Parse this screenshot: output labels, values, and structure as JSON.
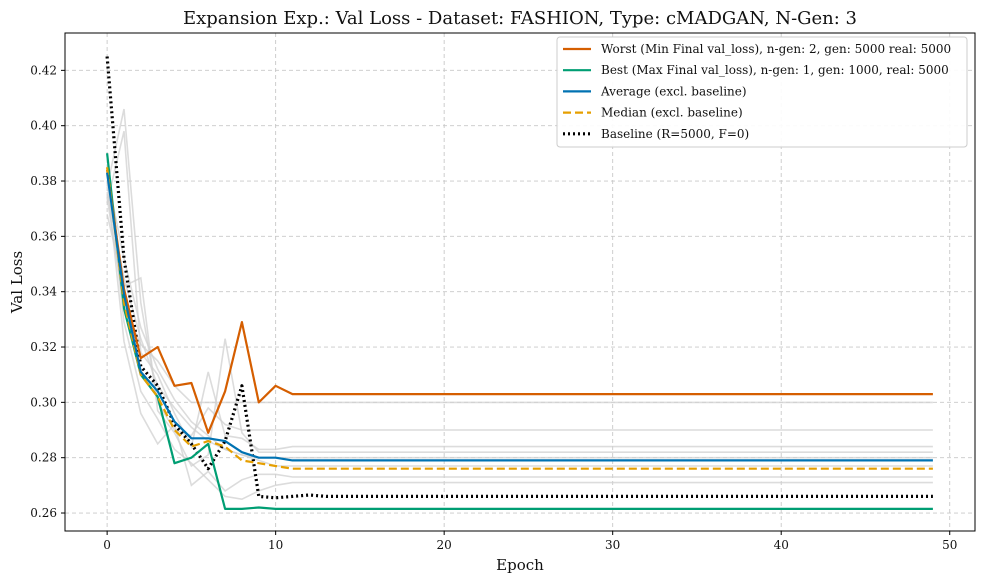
{
  "chart_data": {
    "type": "line",
    "title": "Expansion Exp.: Val Loss - Dataset: FASHION, Type: cMADGAN, N-Gen: 3",
    "xlabel": "Epoch",
    "ylabel": "Val Loss",
    "xlim": [
      -2.5,
      51.5
    ],
    "ylim": [
      0.2535,
      0.4335
    ],
    "xticks": [
      0,
      10,
      20,
      30,
      40,
      50
    ],
    "yticks": [
      0.26,
      0.28,
      0.3,
      0.32,
      0.34,
      0.36,
      0.38,
      0.4,
      0.42
    ],
    "grid": true,
    "legend_position": "top-right",
    "series": [
      {
        "name": "Worst (Min Final val_loss), n-gen: 2, gen: 5000 real: 5000",
        "color": "#d55e00",
        "style": "solid",
        "values": [
          0.384,
          0.341,
          0.316,
          0.32,
          0.306,
          0.307,
          0.289,
          0.304,
          0.329,
          0.3,
          0.306,
          0.303,
          0.303,
          0.303,
          0.303,
          0.303,
          0.303,
          0.303,
          0.303,
          0.303,
          0.303,
          0.303,
          0.303,
          0.303,
          0.303,
          0.303,
          0.303,
          0.303,
          0.303,
          0.303,
          0.303,
          0.303,
          0.303,
          0.303,
          0.303,
          0.303,
          0.303,
          0.303,
          0.303,
          0.303,
          0.303,
          0.303,
          0.303,
          0.303,
          0.303,
          0.303,
          0.303,
          0.303,
          0.303,
          0.303
        ]
      },
      {
        "name": "Best (Max Final val_loss), n-gen: 1, gen: 1000, real: 5000",
        "color": "#009e73",
        "style": "solid",
        "values": [
          0.39,
          0.334,
          0.31,
          0.302,
          0.278,
          0.28,
          0.285,
          0.2615,
          0.2615,
          0.262,
          0.2615,
          0.2615,
          0.2615,
          0.2615,
          0.2615,
          0.2615,
          0.2615,
          0.2615,
          0.2615,
          0.2615,
          0.2615,
          0.2615,
          0.2615,
          0.2615,
          0.2615,
          0.2615,
          0.2615,
          0.2615,
          0.2615,
          0.2615,
          0.2615,
          0.2615,
          0.2615,
          0.2615,
          0.2615,
          0.2615,
          0.2615,
          0.2615,
          0.2615,
          0.2615,
          0.2615,
          0.2615,
          0.2615,
          0.2615,
          0.2615,
          0.2615,
          0.2615,
          0.2615,
          0.2615,
          0.2615
        ]
      },
      {
        "name": "Average (excl. baseline)",
        "color": "#0072b2",
        "style": "solid",
        "values": [
          0.383,
          0.339,
          0.311,
          0.304,
          0.293,
          0.287,
          0.287,
          0.286,
          0.282,
          0.28,
          0.28,
          0.279,
          0.279,
          0.279,
          0.279,
          0.279,
          0.279,
          0.279,
          0.279,
          0.279,
          0.279,
          0.279,
          0.279,
          0.279,
          0.279,
          0.279,
          0.279,
          0.279,
          0.279,
          0.279,
          0.279,
          0.279,
          0.279,
          0.279,
          0.279,
          0.279,
          0.279,
          0.279,
          0.279,
          0.279,
          0.279,
          0.279,
          0.279,
          0.279,
          0.279,
          0.279,
          0.279,
          0.279,
          0.279,
          0.279
        ]
      },
      {
        "name": "Median (excl. baseline)",
        "color": "#e69f00",
        "style": "dashed",
        "values": [
          0.385,
          0.336,
          0.31,
          0.302,
          0.29,
          0.284,
          0.286,
          0.284,
          0.279,
          0.278,
          0.277,
          0.276,
          0.276,
          0.276,
          0.276,
          0.276,
          0.276,
          0.276,
          0.276,
          0.276,
          0.276,
          0.276,
          0.276,
          0.276,
          0.276,
          0.276,
          0.276,
          0.276,
          0.276,
          0.276,
          0.276,
          0.276,
          0.276,
          0.276,
          0.276,
          0.276,
          0.276,
          0.276,
          0.276,
          0.276,
          0.276,
          0.276,
          0.276,
          0.276,
          0.276,
          0.276,
          0.276,
          0.276,
          0.276,
          0.276
        ]
      },
      {
        "name": "Baseline (R=5000, F=0)",
        "color": "#000000",
        "style": "dotted",
        "values": [
          0.425,
          0.352,
          0.313,
          0.306,
          0.292,
          0.285,
          0.276,
          0.286,
          0.306,
          0.266,
          0.2655,
          0.266,
          0.2665,
          0.266,
          0.266,
          0.266,
          0.266,
          0.266,
          0.266,
          0.266,
          0.266,
          0.266,
          0.266,
          0.266,
          0.266,
          0.266,
          0.266,
          0.266,
          0.266,
          0.266,
          0.266,
          0.266,
          0.266,
          0.266,
          0.266,
          0.266,
          0.266,
          0.266,
          0.266,
          0.266,
          0.266,
          0.266,
          0.266,
          0.266,
          0.266,
          0.266,
          0.266,
          0.266,
          0.266,
          0.266
        ]
      }
    ],
    "background_series": [
      {
        "color": "#d0d0d0",
        "values": [
          0.378,
          0.406,
          0.336,
          0.3,
          0.29,
          0.288,
          0.298,
          0.292,
          0.29,
          0.29,
          0.29,
          0.29,
          0.29,
          0.29,
          0.29,
          0.29,
          0.29,
          0.29,
          0.29,
          0.29,
          0.29,
          0.29,
          0.29,
          0.29,
          0.29,
          0.29,
          0.29,
          0.29,
          0.29,
          0.29,
          0.29,
          0.29,
          0.29,
          0.29,
          0.29,
          0.29,
          0.29,
          0.29,
          0.29,
          0.29,
          0.29,
          0.29,
          0.29,
          0.29,
          0.29,
          0.29,
          0.29,
          0.29,
          0.29,
          0.29
        ]
      },
      {
        "color": "#d0d0d0",
        "values": [
          0.372,
          0.398,
          0.318,
          0.31,
          0.296,
          0.284,
          0.311,
          0.288,
          0.287,
          0.283,
          0.283,
          0.284,
          0.284,
          0.284,
          0.284,
          0.284,
          0.284,
          0.284,
          0.284,
          0.284,
          0.284,
          0.284,
          0.284,
          0.284,
          0.284,
          0.284,
          0.284,
          0.284,
          0.284,
          0.284,
          0.284,
          0.284,
          0.284,
          0.284,
          0.284,
          0.284,
          0.284,
          0.284,
          0.284,
          0.284,
          0.284,
          0.284,
          0.284,
          0.284,
          0.284,
          0.284,
          0.284,
          0.284,
          0.284,
          0.284
        ]
      },
      {
        "color": "#d0d0d0",
        "values": [
          0.368,
          0.342,
          0.345,
          0.297,
          0.289,
          0.277,
          0.281,
          0.323,
          0.289,
          0.282,
          0.282,
          0.282,
          0.282,
          0.282,
          0.282,
          0.282,
          0.282,
          0.282,
          0.282,
          0.282,
          0.282,
          0.282,
          0.282,
          0.282,
          0.282,
          0.282,
          0.282,
          0.282,
          0.282,
          0.282,
          0.282,
          0.282,
          0.282,
          0.282,
          0.282,
          0.282,
          0.282,
          0.282,
          0.282,
          0.282,
          0.282,
          0.282,
          0.282,
          0.282,
          0.282,
          0.282,
          0.282,
          0.282,
          0.282,
          0.282
        ]
      },
      {
        "color": "#d0d0d0",
        "values": [
          0.38,
          0.322,
          0.296,
          0.285,
          0.292,
          0.27,
          0.275,
          0.268,
          0.272,
          0.274,
          0.274,
          0.273,
          0.273,
          0.273,
          0.273,
          0.273,
          0.273,
          0.273,
          0.273,
          0.273,
          0.273,
          0.273,
          0.273,
          0.273,
          0.273,
          0.273,
          0.273,
          0.273,
          0.273,
          0.273,
          0.273,
          0.273,
          0.273,
          0.273,
          0.273,
          0.273,
          0.273,
          0.273,
          0.273,
          0.273,
          0.273,
          0.273,
          0.273,
          0.273,
          0.273,
          0.273,
          0.273,
          0.273,
          0.273,
          0.273
        ]
      },
      {
        "color": "#d0d0d0",
        "values": [
          0.386,
          0.329,
          0.304,
          0.294,
          0.283,
          0.278,
          0.272,
          0.266,
          0.265,
          0.268,
          0.27,
          0.271,
          0.271,
          0.271,
          0.271,
          0.271,
          0.271,
          0.271,
          0.271,
          0.271,
          0.271,
          0.271,
          0.271,
          0.271,
          0.271,
          0.271,
          0.271,
          0.271,
          0.271,
          0.271,
          0.271,
          0.271,
          0.271,
          0.271,
          0.271,
          0.271,
          0.271,
          0.271,
          0.271,
          0.271,
          0.271,
          0.271,
          0.271,
          0.271,
          0.271,
          0.271,
          0.271,
          0.271,
          0.271,
          0.271
        ]
      },
      {
        "color": "#d0d0d0",
        "values": [
          0.376,
          0.345,
          0.323,
          0.306,
          0.298,
          0.291,
          0.286,
          0.283,
          0.281,
          0.279,
          0.277,
          0.277,
          0.277,
          0.277,
          0.277,
          0.277,
          0.277,
          0.277,
          0.277,
          0.277,
          0.277,
          0.277,
          0.277,
          0.277,
          0.277,
          0.277,
          0.277,
          0.277,
          0.277,
          0.277,
          0.277,
          0.277,
          0.277,
          0.277,
          0.277,
          0.277,
          0.277,
          0.277,
          0.277,
          0.277,
          0.277,
          0.277,
          0.277,
          0.277,
          0.277,
          0.277,
          0.277,
          0.277,
          0.277,
          0.277
        ]
      },
      {
        "color": "#d0d0d0",
        "values": [
          0.382,
          0.352,
          0.327,
          0.312,
          0.301,
          0.293,
          0.288,
          0.283,
          0.281,
          0.28,
          0.28,
          0.28,
          0.28,
          0.28,
          0.28,
          0.28,
          0.28,
          0.28,
          0.28,
          0.28,
          0.28,
          0.28,
          0.28,
          0.28,
          0.28,
          0.28,
          0.28,
          0.28,
          0.28,
          0.28,
          0.28,
          0.28,
          0.28,
          0.28,
          0.28,
          0.28,
          0.28,
          0.28,
          0.28,
          0.28,
          0.28,
          0.28,
          0.28,
          0.28,
          0.28,
          0.28,
          0.28,
          0.28,
          0.28,
          0.28
        ]
      },
      {
        "color": "#d0d0d0",
        "values": [
          0.374,
          0.335,
          0.321,
          0.315,
          0.306,
          0.3,
          0.3,
          0.3,
          0.3,
          0.3,
          0.3,
          0.3,
          0.3,
          0.3,
          0.3,
          0.3,
          0.3,
          0.3,
          0.3,
          0.3,
          0.3,
          0.3,
          0.3,
          0.3,
          0.3,
          0.3,
          0.3,
          0.3,
          0.3,
          0.3,
          0.3,
          0.3,
          0.3,
          0.3,
          0.3,
          0.3,
          0.3,
          0.3,
          0.3,
          0.3,
          0.3,
          0.3,
          0.3,
          0.3,
          0.3,
          0.3,
          0.3,
          0.3,
          0.3,
          0.3
        ]
      }
    ]
  }
}
